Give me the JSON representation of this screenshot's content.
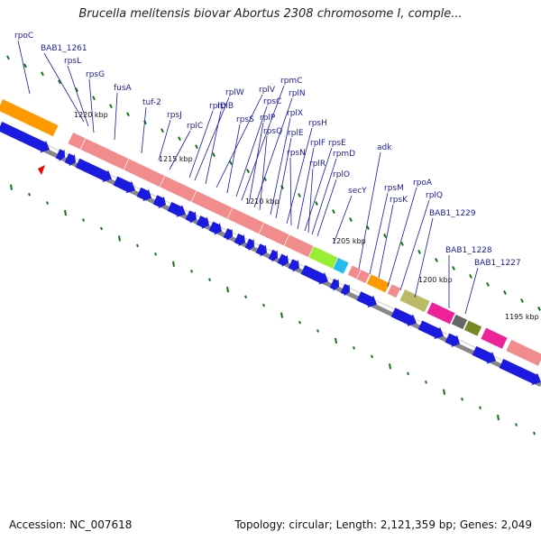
{
  "title": "Brucella melitensis biovar Abortus 2308 chromosome I, comple...",
  "footer": {
    "accession": "Accession: NC_007618",
    "summary": "Topology: circular; Length: 2,121,359 bp; Genes: 2,049"
  },
  "colors": {
    "rrna_like": "#f28c8c",
    "protein_arrows": "#1a1ae0",
    "lime": "#99ee33",
    "cyan": "#22bbee",
    "orange": "#ff9900",
    "olive": "#bbbb66",
    "magenta": "#ee2299",
    "grey": "#666666",
    "darkolive": "#778822",
    "backbone": "#888888",
    "label": "#1a1aa6",
    "gc_skew": "#117711",
    "start_marker": "#ee0000"
  },
  "kbp_ticks": [
    "1220 kbp",
    "1215 kbp",
    "1210 kbp",
    "1205 kbp",
    "1200 kbp",
    "1195 kbp"
  ],
  "gene_labels": [
    "rpoC",
    "BAB1_1261",
    "rpsL",
    "rpsG",
    "fusA",
    "tuf-2",
    "rpsJ",
    "rplC",
    "rplD",
    "rplW",
    "rplB",
    "rplV",
    "rpsS",
    "rpsC",
    "rpmC",
    "rplP",
    "rplN",
    "rpsQ",
    "rplX",
    "rplE",
    "rpsH",
    "rpsN",
    "rplF",
    "rpsE",
    "rplR",
    "rpmD",
    "rplO",
    "secY",
    "adk",
    "rpsM",
    "rpsK",
    "rpoA",
    "rplQ",
    "BAB1_1229",
    "BAB1_1228",
    "BAB1_1227"
  ]
}
